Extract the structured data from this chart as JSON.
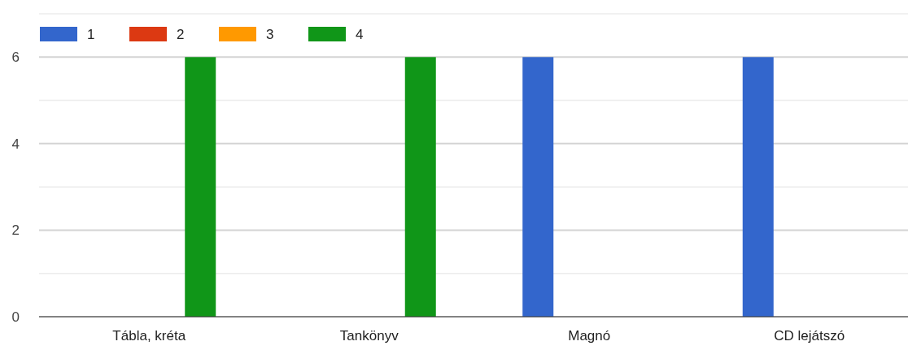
{
  "chart_data": {
    "type": "bar",
    "categories": [
      "Tábla, kréta",
      "Tankönyv",
      "Magnó",
      "CD lejátszó"
    ],
    "series": [
      {
        "name": "1",
        "color": "#3366cc",
        "values": [
          0,
          0,
          6,
          6
        ]
      },
      {
        "name": "2",
        "color": "#dc3912",
        "values": [
          0,
          0,
          0,
          0
        ]
      },
      {
        "name": "3",
        "color": "#ff9900",
        "values": [
          0,
          0,
          0,
          0
        ]
      },
      {
        "name": "4",
        "color": "#109618",
        "values": [
          6,
          6,
          0,
          0
        ]
      }
    ],
    "ylim": [
      0,
      7
    ],
    "yticks": [
      0,
      {
        "value": 1,
        "label": null
      },
      2,
      {
        "value": 3,
        "label": null
      },
      4,
      {
        "value": 5,
        "label": null
      },
      6,
      {
        "value": 7,
        "label": null
      }
    ],
    "grid": true,
    "legend": "top left"
  }
}
